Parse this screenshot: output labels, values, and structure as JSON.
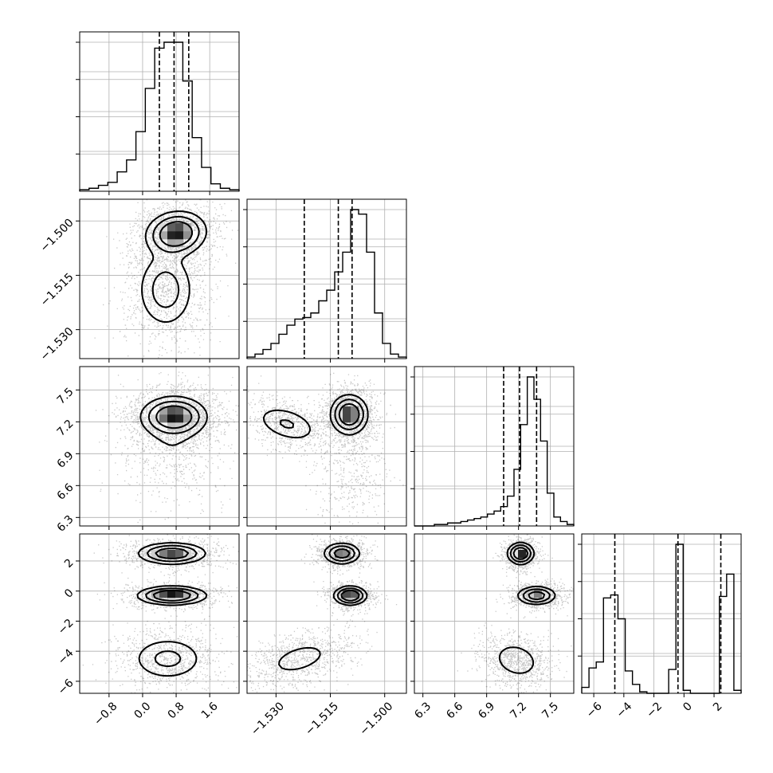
{
  "chart_data": {
    "type": "corner",
    "grid": true,
    "parameters": [
      {
        "range": [
          -1.5,
          2.3
        ],
        "ticks": [
          -0.8,
          0.0,
          0.8,
          1.6
        ],
        "tick_labels": [
          "−0.8",
          "0.0",
          "0.8",
          "1.6"
        ],
        "quantiles": [
          0.4,
          0.75,
          1.1
        ],
        "hist": [
          0.01,
          0.02,
          0.04,
          0.06,
          0.13,
          0.21,
          0.4,
          0.69,
          0.96,
          1.0,
          1.0,
          0.74,
          0.36,
          0.16,
          0.05,
          0.02,
          0.01
        ]
      },
      {
        "range": [
          -1.538,
          -1.494
        ],
        "ticks": [
          -1.53,
          -1.515,
          -1.5
        ],
        "tick_labels": [
          "−1.530",
          "−1.515",
          "−1.500"
        ],
        "quantiles": [
          -1.5222,
          -1.5128,
          -1.509
        ],
        "hist": [
          0.01,
          0.03,
          0.06,
          0.1,
          0.16,
          0.22,
          0.26,
          0.27,
          0.3,
          0.38,
          0.45,
          0.57,
          0.7,
          0.98,
          0.95,
          0.7,
          0.3,
          0.1,
          0.03,
          0.01
        ]
      },
      {
        "range": [
          6.22,
          7.72
        ],
        "ticks": [
          6.3,
          6.6,
          6.9,
          7.2,
          7.5
        ],
        "tick_labels": [
          "6.3",
          "6.6",
          "6.9",
          "7.2",
          "7.5"
        ],
        "quantiles": [
          7.06,
          7.21,
          7.37
        ],
        "hist": [
          0.0,
          0.0,
          0.0,
          0.01,
          0.01,
          0.02,
          0.02,
          0.03,
          0.04,
          0.05,
          0.06,
          0.08,
          0.1,
          0.13,
          0.2,
          0.38,
          0.68,
          1.0,
          0.85,
          0.57,
          0.22,
          0.06,
          0.03,
          0.01
        ]
      },
      {
        "range": [
          -6.8,
          3.8
        ],
        "ticks": [
          -6,
          -4,
          -2,
          0,
          2
        ],
        "tick_labels": [
          "−6",
          "−4",
          "−2",
          "0",
          "2"
        ],
        "quantiles": [
          -4.6,
          -0.4,
          2.45
        ],
        "hist": [
          0.04,
          0.17,
          0.21,
          0.64,
          0.66,
          0.5,
          0.15,
          0.06,
          0.01,
          0.0,
          0.0,
          0.0,
          0.16,
          1.0,
          0.02,
          0.0,
          0.0,
          0.0,
          0.0,
          0.65,
          0.8,
          0.02
        ]
      }
    ],
    "pairs": [
      {
        "row": 1,
        "col": 0,
        "blobs": [
          {
            "cx": 0.8,
            "cy": -1.5035,
            "sx": 0.35,
            "sy": 0.003,
            "w": 0.55,
            "rho": 0.1
          },
          {
            "cx": 0.55,
            "cy": -1.519,
            "sx": 0.35,
            "sy": 0.0055,
            "w": 0.45,
            "rho": 0.0
          }
        ]
      },
      {
        "row": 2,
        "col": 0,
        "blobs": [
          {
            "cx": 0.75,
            "cy": 7.25,
            "sx": 0.38,
            "sy": 0.09,
            "w": 0.75,
            "rho": 0.0
          },
          {
            "cx": 0.7,
            "cy": 7.0,
            "sx": 0.45,
            "sy": 0.22,
            "w": 0.25,
            "rho": 0.0
          }
        ]
      },
      {
        "row": 2,
        "col": 1,
        "blobs": [
          {
            "cx": -1.5098,
            "cy": 7.27,
            "sx": 0.0025,
            "sy": 0.09,
            "w": 0.55,
            "rho": 0.0
          },
          {
            "cx": -1.527,
            "cy": 7.18,
            "sx": 0.0045,
            "sy": 0.09,
            "w": 0.3,
            "rho": -0.4
          },
          {
            "cx": -1.509,
            "cy": 6.75,
            "sx": 0.004,
            "sy": 0.18,
            "w": 0.15,
            "rho": 0.0
          }
        ]
      },
      {
        "row": 3,
        "col": 0,
        "blobs": [
          {
            "cx": 0.7,
            "cy": 2.5,
            "sx": 0.4,
            "sy": 0.35,
            "w": 0.33,
            "rho": 0.0
          },
          {
            "cx": 0.7,
            "cy": -0.3,
            "sx": 0.4,
            "sy": 0.3,
            "w": 0.33,
            "rho": 0.0
          },
          {
            "cx": 0.6,
            "cy": -4.5,
            "sx": 0.45,
            "sy": 0.75,
            "w": 0.34,
            "rho": 0.0
          }
        ]
      },
      {
        "row": 3,
        "col": 1,
        "blobs": [
          {
            "cx": -1.5118,
            "cy": 2.5,
            "sx": 0.0025,
            "sy": 0.35,
            "w": 0.33,
            "rho": 0.0
          },
          {
            "cx": -1.5095,
            "cy": -0.3,
            "sx": 0.0022,
            "sy": 0.3,
            "w": 0.33,
            "rho": 0.0
          },
          {
            "cx": -1.5235,
            "cy": -4.5,
            "sx": 0.0055,
            "sy": 0.7,
            "w": 0.34,
            "rho": 0.45
          }
        ]
      },
      {
        "row": 3,
        "col": 2,
        "blobs": [
          {
            "cx": 7.22,
            "cy": 2.5,
            "sx": 0.06,
            "sy": 0.35,
            "w": 0.33,
            "rho": 0.0
          },
          {
            "cx": 7.37,
            "cy": -0.3,
            "sx": 0.09,
            "sy": 0.3,
            "w": 0.33,
            "rho": 0.0
          },
          {
            "cx": 7.18,
            "cy": -4.6,
            "sx": 0.12,
            "sy": 0.65,
            "w": 0.34,
            "rho": -0.2
          }
        ]
      }
    ]
  }
}
